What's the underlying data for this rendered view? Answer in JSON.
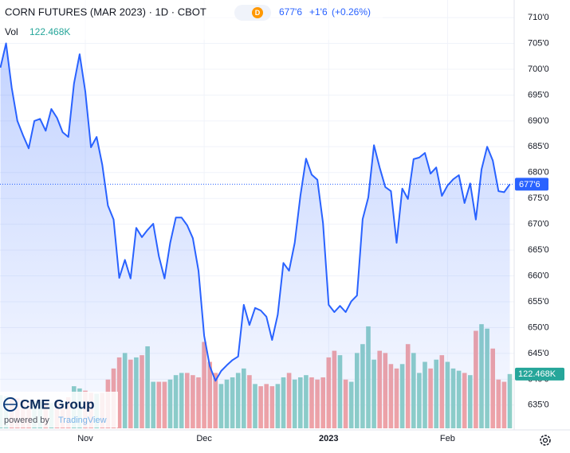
{
  "chart_data": {
    "type": "line",
    "header": {
      "title": "CORN FUTURES (MAR 2023) · 1D · CBOT",
      "badge": "D",
      "price": "677'6",
      "change": "+1'6",
      "change_pct": "(+0.26%)",
      "vol_label": "Vol",
      "vol_value": "122.468K"
    },
    "categories": [
      null,
      null,
      null,
      null,
      null,
      null,
      null,
      null,
      null,
      null,
      null,
      null,
      null,
      null,
      null,
      "Nov",
      null,
      null,
      null,
      null,
      null,
      null,
      null,
      null,
      null,
      null,
      null,
      null,
      null,
      null,
      null,
      null,
      null,
      null,
      null,
      null,
      "Dec",
      null,
      null,
      null,
      null,
      null,
      null,
      null,
      null,
      null,
      null,
      null,
      null,
      null,
      null,
      null,
      null,
      null,
      null,
      null,
      null,
      null,
      "2023",
      null,
      null,
      null,
      null,
      null,
      null,
      null,
      null,
      null,
      null,
      null,
      null,
      null,
      null,
      null,
      null,
      null,
      null,
      null,
      null,
      "Feb",
      null,
      null,
      null,
      null,
      null,
      null,
      null,
      null,
      null,
      null,
      null
    ],
    "series": [
      {
        "name": "Price",
        "color": "#2962ff",
        "values": [
          700.3,
          705,
          696.4,
          690,
          687.2,
          684.7,
          690,
          690.4,
          688.1,
          692.3,
          690.6,
          687.8,
          686.9,
          697.2,
          702.9,
          695.7,
          684.9,
          686.9,
          681.5,
          673.6,
          670.9,
          659.6,
          663.1,
          659.5,
          669.3,
          667.5,
          668.9,
          670.1,
          663.8,
          659.5,
          666.4,
          671.3,
          671.3,
          669.8,
          667.3,
          661,
          648.4,
          642.5,
          639.7,
          641.6,
          642.7,
          643.7,
          644.4,
          654.4,
          650.5,
          653.8,
          653.3,
          652.1,
          647.6,
          652.5,
          662.5,
          661,
          666.4,
          675.5,
          682.7,
          679.6,
          678.6,
          670.2,
          654.4,
          653,
          654.2,
          653,
          655.1,
          656.2,
          671,
          675.2,
          685.3,
          681,
          677.2,
          676.4,
          666.4,
          676.9,
          674.9,
          682.6,
          682.9,
          683.8,
          679.8,
          681,
          675.5,
          677.5,
          678.7,
          679.5,
          674.1,
          677.9,
          670.9,
          680.6,
          685,
          682.3,
          676.4,
          676.2,
          677.75
        ]
      }
    ],
    "last_price": {
      "value": 677.75,
      "label": "677'6"
    },
    "volume": {
      "up_color": "#8fd0c7",
      "down_color": "#f4a4a4",
      "ylim": [
        0,
        300000
      ],
      "last_label": "122.468K",
      "values": [
        75000,
        72000,
        70000,
        68000,
        65000,
        60000,
        62000,
        60000,
        58000,
        57000,
        60000,
        55000,
        70000,
        95000,
        90000,
        85000,
        80000,
        78000,
        80000,
        110000,
        135000,
        160000,
        170000,
        155000,
        160000,
        165000,
        185000,
        105000,
        105000,
        105000,
        110000,
        120000,
        125000,
        125000,
        120000,
        115000,
        195000,
        150000,
        125000,
        100000,
        110000,
        115000,
        125000,
        135000,
        120000,
        100000,
        95000,
        100000,
        95000,
        100000,
        115000,
        125000,
        110000,
        115000,
        120000,
        115000,
        110000,
        115000,
        160000,
        175000,
        165000,
        110000,
        105000,
        170000,
        190000,
        230000,
        155000,
        175000,
        170000,
        145000,
        135000,
        145000,
        190000,
        170000,
        125000,
        150000,
        135000,
        155000,
        165000,
        150000,
        135000,
        130000,
        125000,
        120000,
        220000,
        235000,
        225000,
        180000,
        110000,
        105000,
        122468
      ]
    },
    "ylim": [
      630.5,
      713.4
    ],
    "yticks": [
      {
        "value": 635,
        "label": "635'0"
      },
      {
        "value": 640,
        "label": "640'0"
      },
      {
        "value": 645,
        "label": "645'0"
      },
      {
        "value": 650,
        "label": "650'0"
      },
      {
        "value": 655,
        "label": "655'0"
      },
      {
        "value": 660,
        "label": "660'0"
      },
      {
        "value": 665,
        "label": "665'0"
      },
      {
        "value": 670,
        "label": "670'0"
      },
      {
        "value": 675,
        "label": "675'0"
      },
      {
        "value": 680,
        "label": "680'0"
      },
      {
        "value": 685,
        "label": "685'0"
      },
      {
        "value": 690,
        "label": "690'0"
      },
      {
        "value": 695,
        "label": "695'0"
      },
      {
        "value": 700,
        "label": "700'0"
      },
      {
        "value": 705,
        "label": "705'0"
      },
      {
        "value": 710,
        "label": "710'0"
      }
    ],
    "grid": true,
    "logo": {
      "brand": "CME Group",
      "powered": "powered by",
      "platform": "TradingView"
    }
  }
}
